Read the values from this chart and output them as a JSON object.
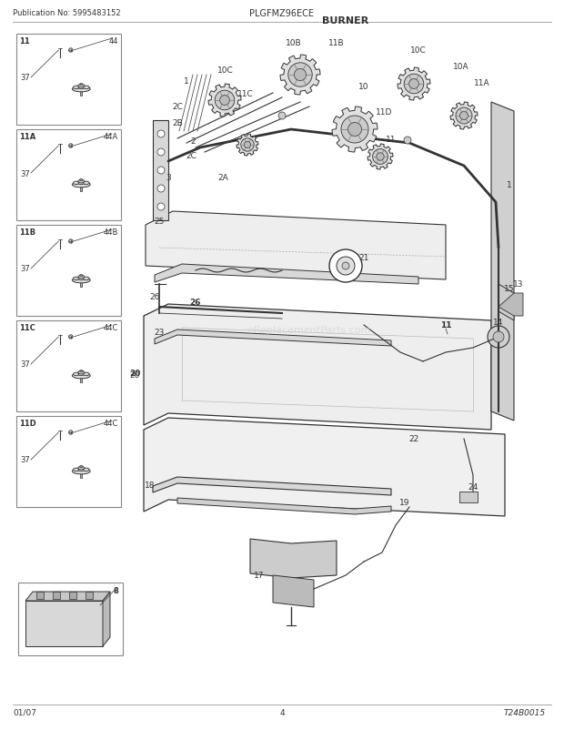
{
  "title": "BURNER",
  "pub_no": "Publication No: 5995483152",
  "model": "PLGFMZ96ECE",
  "footer_left": "01/07",
  "footer_center": "4",
  "footer_right": "T24B0015",
  "bg_color": "#ffffff",
  "text_color": "#000000",
  "line_color": "#333333",
  "light_gray": "#cccccc",
  "mid_gray": "#888888",
  "dark_gray": "#555555",
  "watermark": "eReplacementParts.com",
  "left_boxes": [
    {
      "label_tl": "11",
      "label_tr": "44",
      "label_l": "37"
    },
    {
      "label_tl": "11A",
      "label_tr": "44A",
      "label_l": "37"
    },
    {
      "label_tl": "11B",
      "label_tr": "44B",
      "label_l": "37"
    },
    {
      "label_tl": "11C",
      "label_tr": "44C",
      "label_l": "37"
    },
    {
      "label_tl": "11D",
      "label_tr": "44C",
      "label_l": "37"
    }
  ]
}
